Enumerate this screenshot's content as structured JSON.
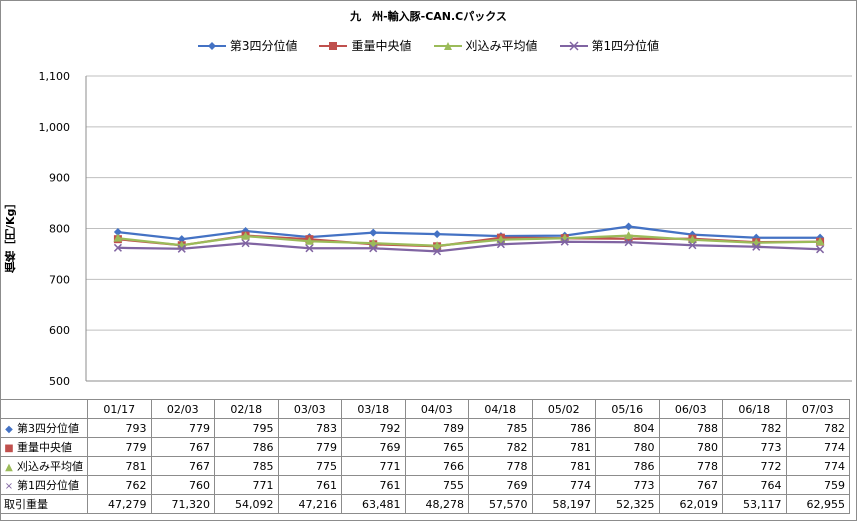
{
  "chart_data": {
    "type": "line",
    "title": "九　州-輸入豚-CAN.Cパックス",
    "ylabel": "価格［円/Kg］",
    "xlabel": "",
    "ylim": [
      500,
      1100
    ],
    "yticks": [
      "500",
      "600",
      "700",
      "800",
      "900",
      "1,000",
      "1,100"
    ],
    "yticks_values": [
      500,
      600,
      700,
      800,
      900,
      1000,
      1100
    ],
    "categories": [
      "01/17",
      "02/03",
      "02/18",
      "03/03",
      "03/18",
      "04/03",
      "04/18",
      "05/02",
      "05/16",
      "06/03",
      "06/18",
      "07/03"
    ],
    "grid": "horizontal",
    "legend_position": "top",
    "series": [
      {
        "name": "第3四分位値",
        "color": "#4472C4",
        "marker": "diamond",
        "values": [
          793,
          779,
          795,
          783,
          792,
          789,
          785,
          786,
          804,
          788,
          782,
          782
        ]
      },
      {
        "name": "重量中央値",
        "color": "#C0504D",
        "marker": "square",
        "values": [
          779,
          767,
          786,
          779,
          769,
          765,
          782,
          781,
          780,
          780,
          773,
          774
        ]
      },
      {
        "name": "刈込み平均値",
        "color": "#9BBB59",
        "marker": "triangle",
        "values": [
          781,
          767,
          785,
          775,
          771,
          766,
          778,
          781,
          786,
          778,
          772,
          774
        ]
      },
      {
        "name": "第1四分位値",
        "color": "#8064A2",
        "marker": "x",
        "values": [
          762,
          760,
          771,
          761,
          761,
          755,
          769,
          774,
          773,
          767,
          764,
          759
        ]
      }
    ],
    "extra_rows": [
      {
        "name": "取引重量",
        "values": [
          "47,279",
          "71,320",
          "54,092",
          "47,216",
          "63,481",
          "48,278",
          "57,570",
          "58,197",
          "52,325",
          "62,019",
          "53,117",
          "62,955"
        ]
      }
    ]
  },
  "table_values": {
    "s0": [
      "793",
      "779",
      "795",
      "783",
      "792",
      "789",
      "785",
      "786",
      "804",
      "788",
      "782",
      "782"
    ],
    "s1": [
      "779",
      "767",
      "786",
      "779",
      "769",
      "765",
      "782",
      "781",
      "780",
      "780",
      "773",
      "774"
    ],
    "s2": [
      "781",
      "767",
      "785",
      "775",
      "771",
      "766",
      "778",
      "781",
      "786",
      "778",
      "772",
      "774"
    ],
    "s3": [
      "762",
      "760",
      "771",
      "761",
      "761",
      "755",
      "769",
      "774",
      "773",
      "767",
      "764",
      "759"
    ]
  },
  "markers": {
    "s0": "◆",
    "s1": "■",
    "s2": "▲",
    "s3": "×"
  }
}
